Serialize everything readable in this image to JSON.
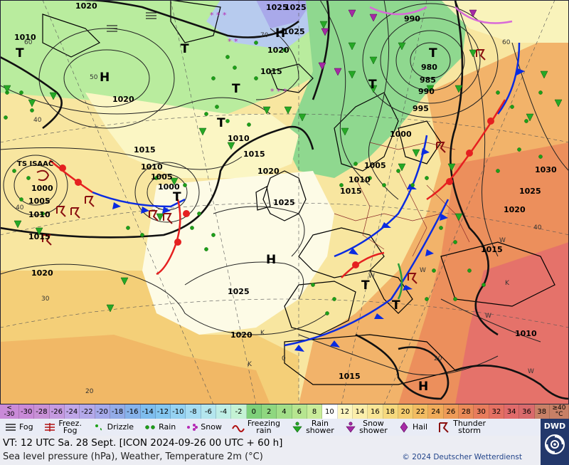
{
  "map": {
    "pressure_labels": [
      "1020",
      "1025",
      "1010",
      "990",
      "980",
      "985",
      "990",
      "995",
      "1000",
      "1005",
      "1010",
      "1015",
      "1020",
      "1025",
      "1030",
      "1025",
      "1020",
      "1015",
      "1010",
      "1015",
      "1020",
      "1025",
      "1015",
      "1010",
      "1005",
      "1000",
      "1020",
      "1025",
      "1015",
      "1010",
      "1005",
      "1000",
      "1015",
      "1020",
      "1010",
      "1015",
      "1020",
      "1025"
    ],
    "centers": [
      {
        "type": "H",
        "label": "H"
      },
      {
        "type": "T",
        "label": "T"
      },
      {
        "type": "T",
        "label": "T"
      },
      {
        "type": "T",
        "label": "T"
      },
      {
        "type": "T",
        "label": "T"
      },
      {
        "type": "T",
        "label": "T"
      },
      {
        "type": "H",
        "label": "H"
      },
      {
        "type": "H",
        "label": "H"
      },
      {
        "type": "T",
        "label": "T"
      },
      {
        "type": "T",
        "label": "T"
      },
      {
        "type": "T",
        "label": "T"
      },
      {
        "type": "T",
        "label": "T"
      },
      {
        "type": "H",
        "label": "H"
      }
    ],
    "storm_label": "TS ISAAC",
    "temperature_labels": [
      "60",
      "50",
      "40",
      "70",
      "60",
      "40",
      "30",
      "20",
      "0",
      "20",
      "40",
      "W",
      "W",
      "W",
      "W",
      "K",
      "K",
      "K",
      "W"
    ]
  },
  "colorbar": {
    "first_top": "<",
    "first_bottom": "-30",
    "values": [
      "-30",
      "-28",
      "-26",
      "-24",
      "-22",
      "-20",
      "-18",
      "-16",
      "-14",
      "-12",
      "-10",
      "-8",
      "-6",
      "-4",
      "-2",
      "0",
      "2",
      "4",
      "6",
      "8",
      "10",
      "12",
      "14",
      "16",
      "18",
      "20",
      "22",
      "24",
      "26",
      "28",
      "30",
      "32",
      "34",
      "36",
      "38"
    ],
    "last_top": "≥40",
    "last_bottom": "°C",
    "colors": [
      "#c98ad8",
      "#c890d6",
      "#c59ae0",
      "#c0a6e8",
      "#b4a9ea",
      "#a5a9ea",
      "#93ace8",
      "#86b2ea",
      "#7ebdee",
      "#84c6f0",
      "#95d2f2",
      "#a6dcf2",
      "#b4e6ee",
      "#bfeee6",
      "#c4f2d4",
      "#7ed07a",
      "#8fd780",
      "#a2de88",
      "#b6e590",
      "#c9ec9a",
      "#ffffff",
      "#fdf6c0",
      "#fbeeaa",
      "#f8e596",
      "#f6d97e",
      "#f4cb6e",
      "#f2bc62",
      "#f0ab5a",
      "#ee9b58",
      "#ea8a58",
      "#e87c5c",
      "#e47062",
      "#e06a6a",
      "#d96a6c",
      "#c88066"
    ]
  },
  "legend": {
    "items": [
      {
        "icon": "fog-icon",
        "label": "Fog"
      },
      {
        "icon": "freezing-fog-icon",
        "label": "Freez. Fog"
      },
      {
        "icon": "drizzle-icon",
        "label": "Drizzle"
      },
      {
        "icon": "rain-icon",
        "label": "Rain"
      },
      {
        "icon": "snow-icon",
        "label": "Snow"
      },
      {
        "icon": "freezing-rain-icon",
        "label": "Freezing rain"
      },
      {
        "icon": "rain-shower-icon",
        "label": "Rain shower"
      },
      {
        "icon": "snow-shower-icon",
        "label": "Snow shower"
      },
      {
        "icon": "hail-icon",
        "label": "Hail"
      },
      {
        "icon": "thunderstorm-icon",
        "label": "Thunder storm"
      }
    ]
  },
  "footer": {
    "vt_line": "VT: 12 UTC Sa.  28 Sept. [ICON 2024-09-26  00 UTC + 60 h]",
    "description": "Sea level pressure (hPa), Weather, Temperature 2m (°C)",
    "copyright": "© 2024 Deutscher Wetterdienst"
  },
  "logo": {
    "text": "DWD"
  }
}
